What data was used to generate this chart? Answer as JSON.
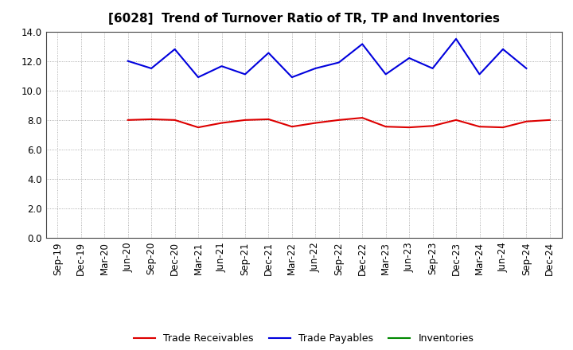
{
  "title": "[6028]  Trend of Turnover Ratio of TR, TP and Inventories",
  "labels": [
    "Sep-19",
    "Dec-19",
    "Mar-20",
    "Jun-20",
    "Sep-20",
    "Dec-20",
    "Mar-21",
    "Jun-21",
    "Sep-21",
    "Dec-21",
    "Mar-22",
    "Jun-22",
    "Sep-22",
    "Dec-22",
    "Mar-23",
    "Jun-23",
    "Sep-23",
    "Dec-23",
    "Mar-24",
    "Jun-24",
    "Sep-24",
    "Dec-24"
  ],
  "trade_receivables": [
    null,
    null,
    null,
    8.0,
    8.05,
    8.0,
    7.5,
    7.8,
    8.0,
    8.05,
    7.55,
    7.8,
    8.0,
    8.15,
    7.55,
    7.5,
    7.6,
    8.0,
    7.55,
    7.5,
    7.9,
    8.0
  ],
  "trade_payables": [
    null,
    null,
    null,
    12.0,
    11.5,
    12.8,
    10.9,
    11.65,
    11.1,
    12.55,
    10.9,
    11.5,
    11.9,
    13.15,
    11.1,
    12.2,
    11.5,
    13.5,
    11.1,
    12.8,
    11.5,
    null
  ],
  "inventories": [
    null,
    null,
    null,
    null,
    null,
    null,
    null,
    null,
    null,
    null,
    null,
    null,
    null,
    null,
    null,
    null,
    null,
    null,
    null,
    null,
    null,
    null
  ],
  "tr_color": "#dd0000",
  "tp_color": "#0000dd",
  "inv_color": "#008800",
  "ylim": [
    0.0,
    14.0
  ],
  "yticks": [
    0.0,
    2.0,
    4.0,
    6.0,
    8.0,
    10.0,
    12.0,
    14.0
  ],
  "background_color": "#ffffff",
  "grid_color": "#999999",
  "legend_labels": [
    "Trade Receivables",
    "Trade Payables",
    "Inventories"
  ],
  "title_fontsize": 11,
  "tick_fontsize": 8.5
}
